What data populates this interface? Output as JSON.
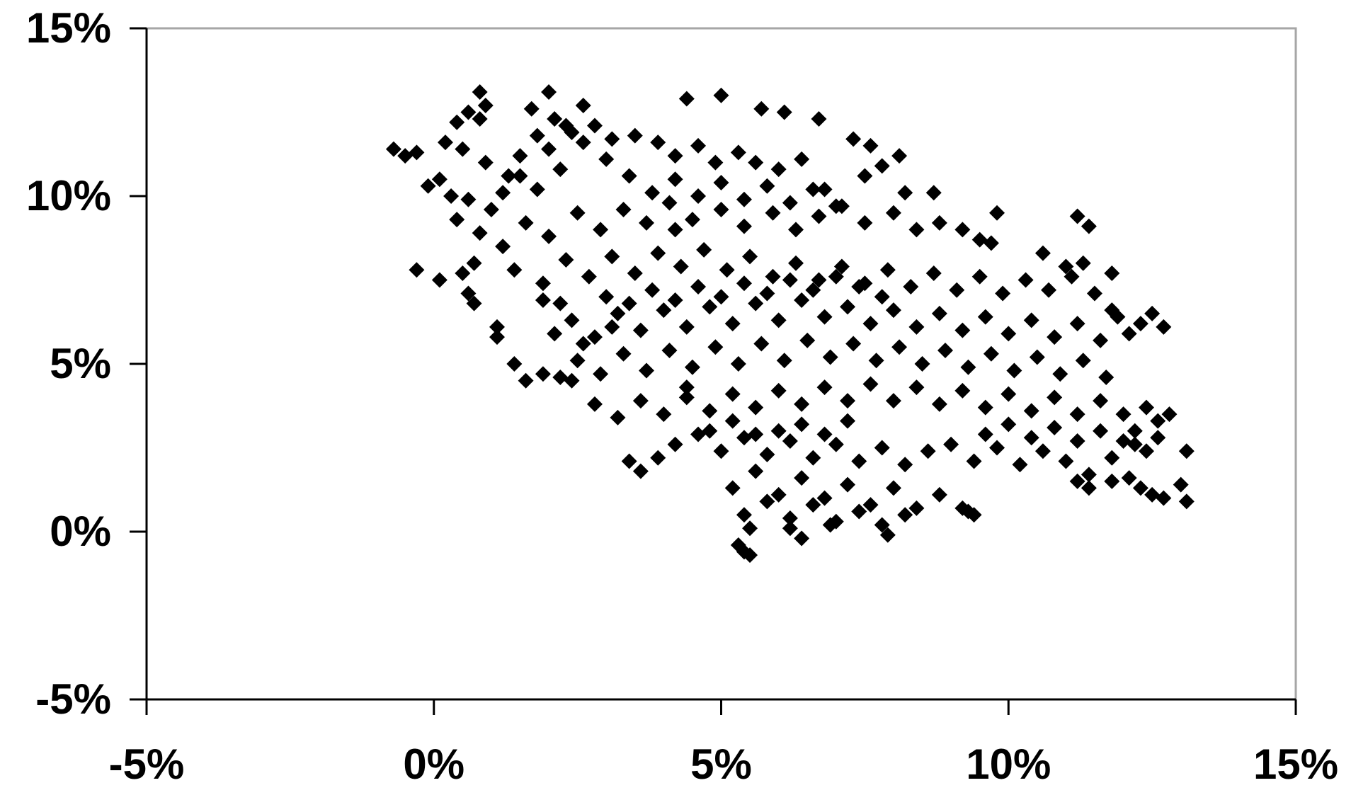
{
  "chart_data": {
    "type": "scatter",
    "title": "",
    "xlabel": "",
    "ylabel": "",
    "xlim": [
      -5,
      15
    ],
    "ylim": [
      -5,
      15
    ],
    "x_ticks": [
      "-5%",
      "0%",
      "5%",
      "10%",
      "15%"
    ],
    "y_ticks": [
      "15%",
      "10%",
      "5%",
      "0%",
      "-5%"
    ],
    "x_tick_values": [
      -5,
      0,
      5,
      10,
      15
    ],
    "y_tick_values": [
      15,
      10,
      5,
      0,
      -5
    ],
    "grid": false,
    "legend": "none",
    "marker": "diamond",
    "marker_color": "#000000",
    "plot_border_color": "#a6a6a6",
    "axis_color": "#000000",
    "series": [
      {
        "points": [
          [
            -0.7,
            11.4
          ],
          [
            -0.5,
            11.2
          ],
          [
            -0.3,
            11.3
          ],
          [
            0.8,
            13.1
          ],
          [
            0.6,
            12.5
          ],
          [
            0.9,
            12.7
          ],
          [
            0.4,
            12.2
          ],
          [
            0.8,
            12.3
          ],
          [
            2.0,
            13.1
          ],
          [
            1.7,
            12.6
          ],
          [
            2.6,
            12.7
          ],
          [
            5.0,
            13.0
          ],
          [
            4.4,
            12.9
          ],
          [
            5.7,
            12.6
          ],
          [
            6.1,
            12.5
          ],
          [
            6.7,
            12.3
          ],
          [
            0.2,
            11.6
          ],
          [
            0.5,
            11.4
          ],
          [
            0.9,
            11.0
          ],
          [
            -0.1,
            10.3
          ],
          [
            0.3,
            10.0
          ],
          [
            0.6,
            9.9
          ],
          [
            0.1,
            10.5
          ],
          [
            0.4,
            9.3
          ],
          [
            0.8,
            8.9
          ],
          [
            1.2,
            8.5
          ],
          [
            0.7,
            8.0
          ],
          [
            0.5,
            7.7
          ],
          [
            0.1,
            7.5
          ],
          [
            -0.3,
            7.8
          ],
          [
            0.6,
            7.1
          ],
          [
            0.7,
            6.8
          ],
          [
            1.1,
            6.1
          ],
          [
            1.1,
            5.8
          ],
          [
            1.4,
            5.0
          ],
          [
            1.6,
            4.5
          ],
          [
            1.9,
            4.7
          ],
          [
            2.2,
            4.6
          ],
          [
            2.4,
            4.5
          ],
          [
            1.5,
            10.6
          ],
          [
            1.8,
            10.2
          ],
          [
            2.2,
            10.8
          ],
          [
            2.0,
            11.4
          ],
          [
            2.4,
            11.9
          ],
          [
            2.8,
            12.1
          ],
          [
            3.1,
            11.7
          ],
          [
            3.5,
            11.8
          ],
          [
            3.9,
            11.6
          ],
          [
            4.2,
            11.2
          ],
          [
            4.6,
            11.5
          ],
          [
            4.9,
            11.0
          ],
          [
            5.3,
            11.3
          ],
          [
            5.6,
            11.0
          ],
          [
            6.0,
            10.8
          ],
          [
            6.4,
            11.1
          ],
          [
            6.8,
            10.2
          ],
          [
            7.3,
            11.7
          ],
          [
            7.6,
            11.5
          ],
          [
            7.8,
            10.9
          ],
          [
            8.1,
            11.2
          ],
          [
            7.5,
            10.6
          ],
          [
            8.2,
            10.1
          ],
          [
            8.7,
            10.1
          ],
          [
            1.6,
            9.2
          ],
          [
            2.0,
            8.8
          ],
          [
            2.5,
            9.5
          ],
          [
            2.9,
            9.0
          ],
          [
            3.3,
            9.6
          ],
          [
            3.7,
            9.2
          ],
          [
            4.1,
            9.8
          ],
          [
            4.5,
            9.3
          ],
          [
            5.0,
            9.6
          ],
          [
            5.4,
            9.1
          ],
          [
            5.9,
            9.5
          ],
          [
            6.3,
            9.0
          ],
          [
            6.7,
            9.4
          ],
          [
            7.1,
            9.7
          ],
          [
            7.5,
            9.2
          ],
          [
            8.0,
            9.5
          ],
          [
            8.4,
            9.0
          ],
          [
            8.8,
            9.2
          ],
          [
            9.2,
            9.0
          ],
          [
            9.5,
            8.7
          ],
          [
            9.8,
            9.5
          ],
          [
            9.7,
            8.6
          ],
          [
            11.2,
            9.4
          ],
          [
            11.4,
            9.1
          ],
          [
            1.4,
            7.8
          ],
          [
            1.9,
            7.4
          ],
          [
            2.3,
            8.1
          ],
          [
            2.7,
            7.6
          ],
          [
            3.1,
            8.2
          ],
          [
            3.5,
            7.7
          ],
          [
            3.9,
            8.3
          ],
          [
            4.3,
            7.9
          ],
          [
            4.7,
            8.4
          ],
          [
            5.1,
            7.8
          ],
          [
            5.5,
            8.2
          ],
          [
            5.9,
            7.6
          ],
          [
            6.3,
            8.0
          ],
          [
            6.7,
            7.5
          ],
          [
            7.1,
            7.9
          ],
          [
            7.5,
            7.4
          ],
          [
            7.9,
            7.8
          ],
          [
            8.3,
            7.3
          ],
          [
            8.7,
            7.7
          ],
          [
            9.1,
            7.2
          ],
          [
            9.5,
            7.6
          ],
          [
            9.9,
            7.1
          ],
          [
            10.3,
            7.5
          ],
          [
            10.7,
            7.2
          ],
          [
            11.1,
            7.6
          ],
          [
            11.5,
            7.1
          ],
          [
            11.8,
            7.7
          ],
          [
            10.6,
            8.3
          ],
          [
            11.0,
            7.9
          ],
          [
            11.3,
            8.0
          ],
          [
            12.5,
            6.5
          ],
          [
            12.7,
            6.1
          ],
          [
            2.4,
            6.3
          ],
          [
            2.8,
            5.8
          ],
          [
            3.2,
            6.5
          ],
          [
            3.6,
            6.0
          ],
          [
            4.0,
            6.6
          ],
          [
            4.4,
            6.1
          ],
          [
            4.8,
            6.7
          ],
          [
            5.2,
            6.2
          ],
          [
            5.6,
            6.8
          ],
          [
            6.0,
            6.3
          ],
          [
            6.4,
            6.9
          ],
          [
            6.8,
            6.4
          ],
          [
            7.2,
            6.7
          ],
          [
            7.6,
            6.2
          ],
          [
            8.0,
            6.6
          ],
          [
            8.4,
            6.1
          ],
          [
            8.8,
            6.5
          ],
          [
            9.2,
            6.0
          ],
          [
            9.6,
            6.4
          ],
          [
            10.0,
            5.9
          ],
          [
            10.4,
            6.3
          ],
          [
            10.8,
            5.8
          ],
          [
            11.2,
            6.2
          ],
          [
            11.6,
            5.7
          ],
          [
            11.9,
            6.4
          ],
          [
            12.1,
            5.9
          ],
          [
            11.8,
            6.6
          ],
          [
            12.3,
            6.2
          ],
          [
            2.5,
            5.1
          ],
          [
            2.9,
            4.7
          ],
          [
            3.3,
            5.3
          ],
          [
            3.7,
            4.8
          ],
          [
            4.1,
            5.4
          ],
          [
            4.5,
            4.9
          ],
          [
            4.9,
            5.5
          ],
          [
            5.3,
            5.0
          ],
          [
            5.7,
            5.6
          ],
          [
            6.1,
            5.1
          ],
          [
            6.5,
            5.7
          ],
          [
            6.9,
            5.2
          ],
          [
            7.3,
            5.6
          ],
          [
            7.7,
            5.1
          ],
          [
            8.1,
            5.5
          ],
          [
            8.5,
            5.0
          ],
          [
            8.9,
            5.4
          ],
          [
            9.3,
            4.9
          ],
          [
            9.7,
            5.3
          ],
          [
            10.1,
            4.8
          ],
          [
            10.5,
            5.2
          ],
          [
            10.9,
            4.7
          ],
          [
            11.3,
            5.1
          ],
          [
            11.7,
            4.6
          ],
          [
            4.4,
            4.3
          ],
          [
            2.8,
            3.8
          ],
          [
            3.2,
            3.4
          ],
          [
            3.6,
            3.9
          ],
          [
            4.0,
            3.5
          ],
          [
            4.4,
            4.0
          ],
          [
            4.8,
            3.6
          ],
          [
            5.2,
            4.1
          ],
          [
            5.6,
            3.7
          ],
          [
            6.0,
            4.2
          ],
          [
            6.4,
            3.8
          ],
          [
            6.8,
            4.3
          ],
          [
            7.2,
            3.9
          ],
          [
            7.6,
            4.4
          ],
          [
            8.0,
            3.9
          ],
          [
            8.4,
            4.3
          ],
          [
            8.8,
            3.8
          ],
          [
            9.2,
            4.2
          ],
          [
            9.6,
            3.7
          ],
          [
            10.0,
            4.1
          ],
          [
            10.4,
            3.6
          ],
          [
            10.8,
            4.0
          ],
          [
            11.2,
            3.5
          ],
          [
            11.6,
            3.9
          ],
          [
            12.0,
            3.5
          ],
          [
            12.4,
            3.7
          ],
          [
            12.6,
            3.3
          ],
          [
            12.8,
            3.5
          ],
          [
            3.4,
            2.1
          ],
          [
            3.6,
            1.8
          ],
          [
            3.9,
            2.2
          ],
          [
            4.2,
            2.6
          ],
          [
            4.6,
            2.9
          ],
          [
            5.0,
            2.4
          ],
          [
            5.4,
            2.8
          ],
          [
            5.8,
            2.3
          ],
          [
            6.2,
            2.7
          ],
          [
            6.6,
            2.2
          ],
          [
            7.0,
            2.6
          ],
          [
            7.4,
            2.1
          ],
          [
            7.8,
            2.5
          ],
          [
            8.2,
            2.0
          ],
          [
            8.6,
            2.4
          ],
          [
            9.0,
            2.6
          ],
          [
            9.4,
            2.1
          ],
          [
            9.8,
            2.5
          ],
          [
            10.2,
            2.0
          ],
          [
            10.6,
            2.4
          ],
          [
            11.0,
            2.1
          ],
          [
            11.4,
            1.7
          ],
          [
            11.8,
            2.2
          ],
          [
            12.2,
            2.6
          ],
          [
            12.6,
            2.8
          ],
          [
            13.1,
            2.4
          ],
          [
            5.2,
            1.3
          ],
          [
            5.6,
            1.8
          ],
          [
            6.0,
            1.1
          ],
          [
            6.4,
            1.6
          ],
          [
            6.8,
            1.0
          ],
          [
            7.2,
            1.4
          ],
          [
            7.6,
            0.8
          ],
          [
            8.0,
            1.3
          ],
          [
            8.4,
            0.7
          ],
          [
            8.8,
            1.1
          ],
          [
            5.4,
            0.5
          ],
          [
            5.8,
            0.9
          ],
          [
            6.2,
            0.4
          ],
          [
            6.6,
            0.8
          ],
          [
            7.0,
            0.3
          ],
          [
            7.4,
            0.6
          ],
          [
            7.8,
            0.2
          ],
          [
            8.2,
            0.5
          ],
          [
            5.5,
            0.1
          ],
          [
            6.2,
            0.1
          ],
          [
            6.9,
            0.2
          ],
          [
            7.9,
            -0.1
          ],
          [
            6.4,
            -0.2
          ],
          [
            5.3,
            -0.4
          ],
          [
            5.4,
            -0.6
          ],
          [
            5.5,
            -0.7
          ],
          [
            9.2,
            0.7
          ],
          [
            9.4,
            0.5
          ],
          [
            9.3,
            0.6
          ],
          [
            11.2,
            1.5
          ],
          [
            11.4,
            1.3
          ],
          [
            11.8,
            1.5
          ],
          [
            12.1,
            1.6
          ],
          [
            12.3,
            1.3
          ],
          [
            12.5,
            1.1
          ],
          [
            12.7,
            1.0
          ],
          [
            13.0,
            1.4
          ],
          [
            13.1,
            0.9
          ],
          [
            1.0,
            9.6
          ],
          [
            1.2,
            10.1
          ],
          [
            1.3,
            10.6
          ],
          [
            1.5,
            11.2
          ],
          [
            1.8,
            11.8
          ],
          [
            2.1,
            12.3
          ],
          [
            2.3,
            12.1
          ],
          [
            2.6,
            11.6
          ],
          [
            3.0,
            11.1
          ],
          [
            3.4,
            10.6
          ],
          [
            3.8,
            10.1
          ],
          [
            4.2,
            10.5
          ],
          [
            4.6,
            10.0
          ],
          [
            5.0,
            10.4
          ],
          [
            5.4,
            9.9
          ],
          [
            5.8,
            10.3
          ],
          [
            6.2,
            9.8
          ],
          [
            6.6,
            10.2
          ],
          [
            7.0,
            9.7
          ],
          [
            3.0,
            7.0
          ],
          [
            3.4,
            6.8
          ],
          [
            3.8,
            7.2
          ],
          [
            4.2,
            6.9
          ],
          [
            4.6,
            7.3
          ],
          [
            5.0,
            7.0
          ],
          [
            5.4,
            7.4
          ],
          [
            5.8,
            7.1
          ],
          [
            6.2,
            7.5
          ],
          [
            6.6,
            7.2
          ],
          [
            7.0,
            7.6
          ],
          [
            7.4,
            7.3
          ],
          [
            7.8,
            7.0
          ],
          [
            4.2,
            9.0
          ],
          [
            3.1,
            6.1
          ],
          [
            2.6,
            5.6
          ],
          [
            2.2,
            6.8
          ],
          [
            1.9,
            6.9
          ],
          [
            2.1,
            5.9
          ],
          [
            6.0,
            3.0
          ],
          [
            6.4,
            3.2
          ],
          [
            6.8,
            2.9
          ],
          [
            7.2,
            3.3
          ],
          [
            5.6,
            2.9
          ],
          [
            5.2,
            3.3
          ],
          [
            4.8,
            3.0
          ],
          [
            9.6,
            2.9
          ],
          [
            10.0,
            3.2
          ],
          [
            10.4,
            2.8
          ],
          [
            10.8,
            3.1
          ],
          [
            11.2,
            2.7
          ],
          [
            11.6,
            3.0
          ],
          [
            12.0,
            2.7
          ],
          [
            12.2,
            3.0
          ],
          [
            12.4,
            2.4
          ]
        ]
      }
    ]
  }
}
